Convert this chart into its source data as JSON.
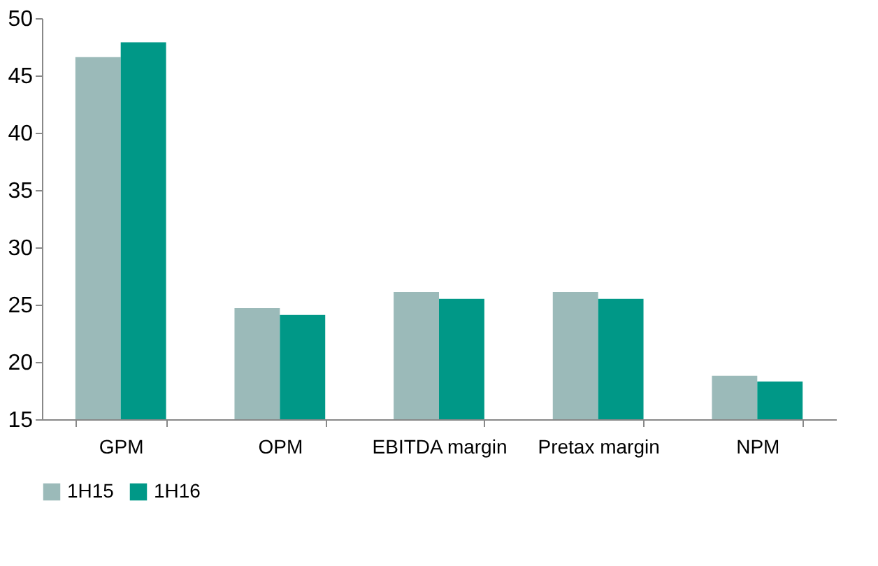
{
  "chart_data": {
    "type": "bar",
    "categories": [
      "GPM",
      "OPM",
      "EBITDA margin",
      "Pretax margin",
      "NPM"
    ],
    "series": [
      {
        "name": "1H15",
        "color": "#9bbab9",
        "values": [
          46.6,
          24.7,
          26.1,
          26.1,
          18.8
        ]
      },
      {
        "name": "1H16",
        "color": "#009887",
        "values": [
          47.9,
          24.1,
          25.5,
          25.5,
          18.3
        ]
      }
    ],
    "ylim": [
      15,
      50
    ],
    "yticks": [
      15,
      20,
      25,
      30,
      35,
      40,
      45,
      50
    ],
    "grid": false,
    "legend": "bottom"
  }
}
